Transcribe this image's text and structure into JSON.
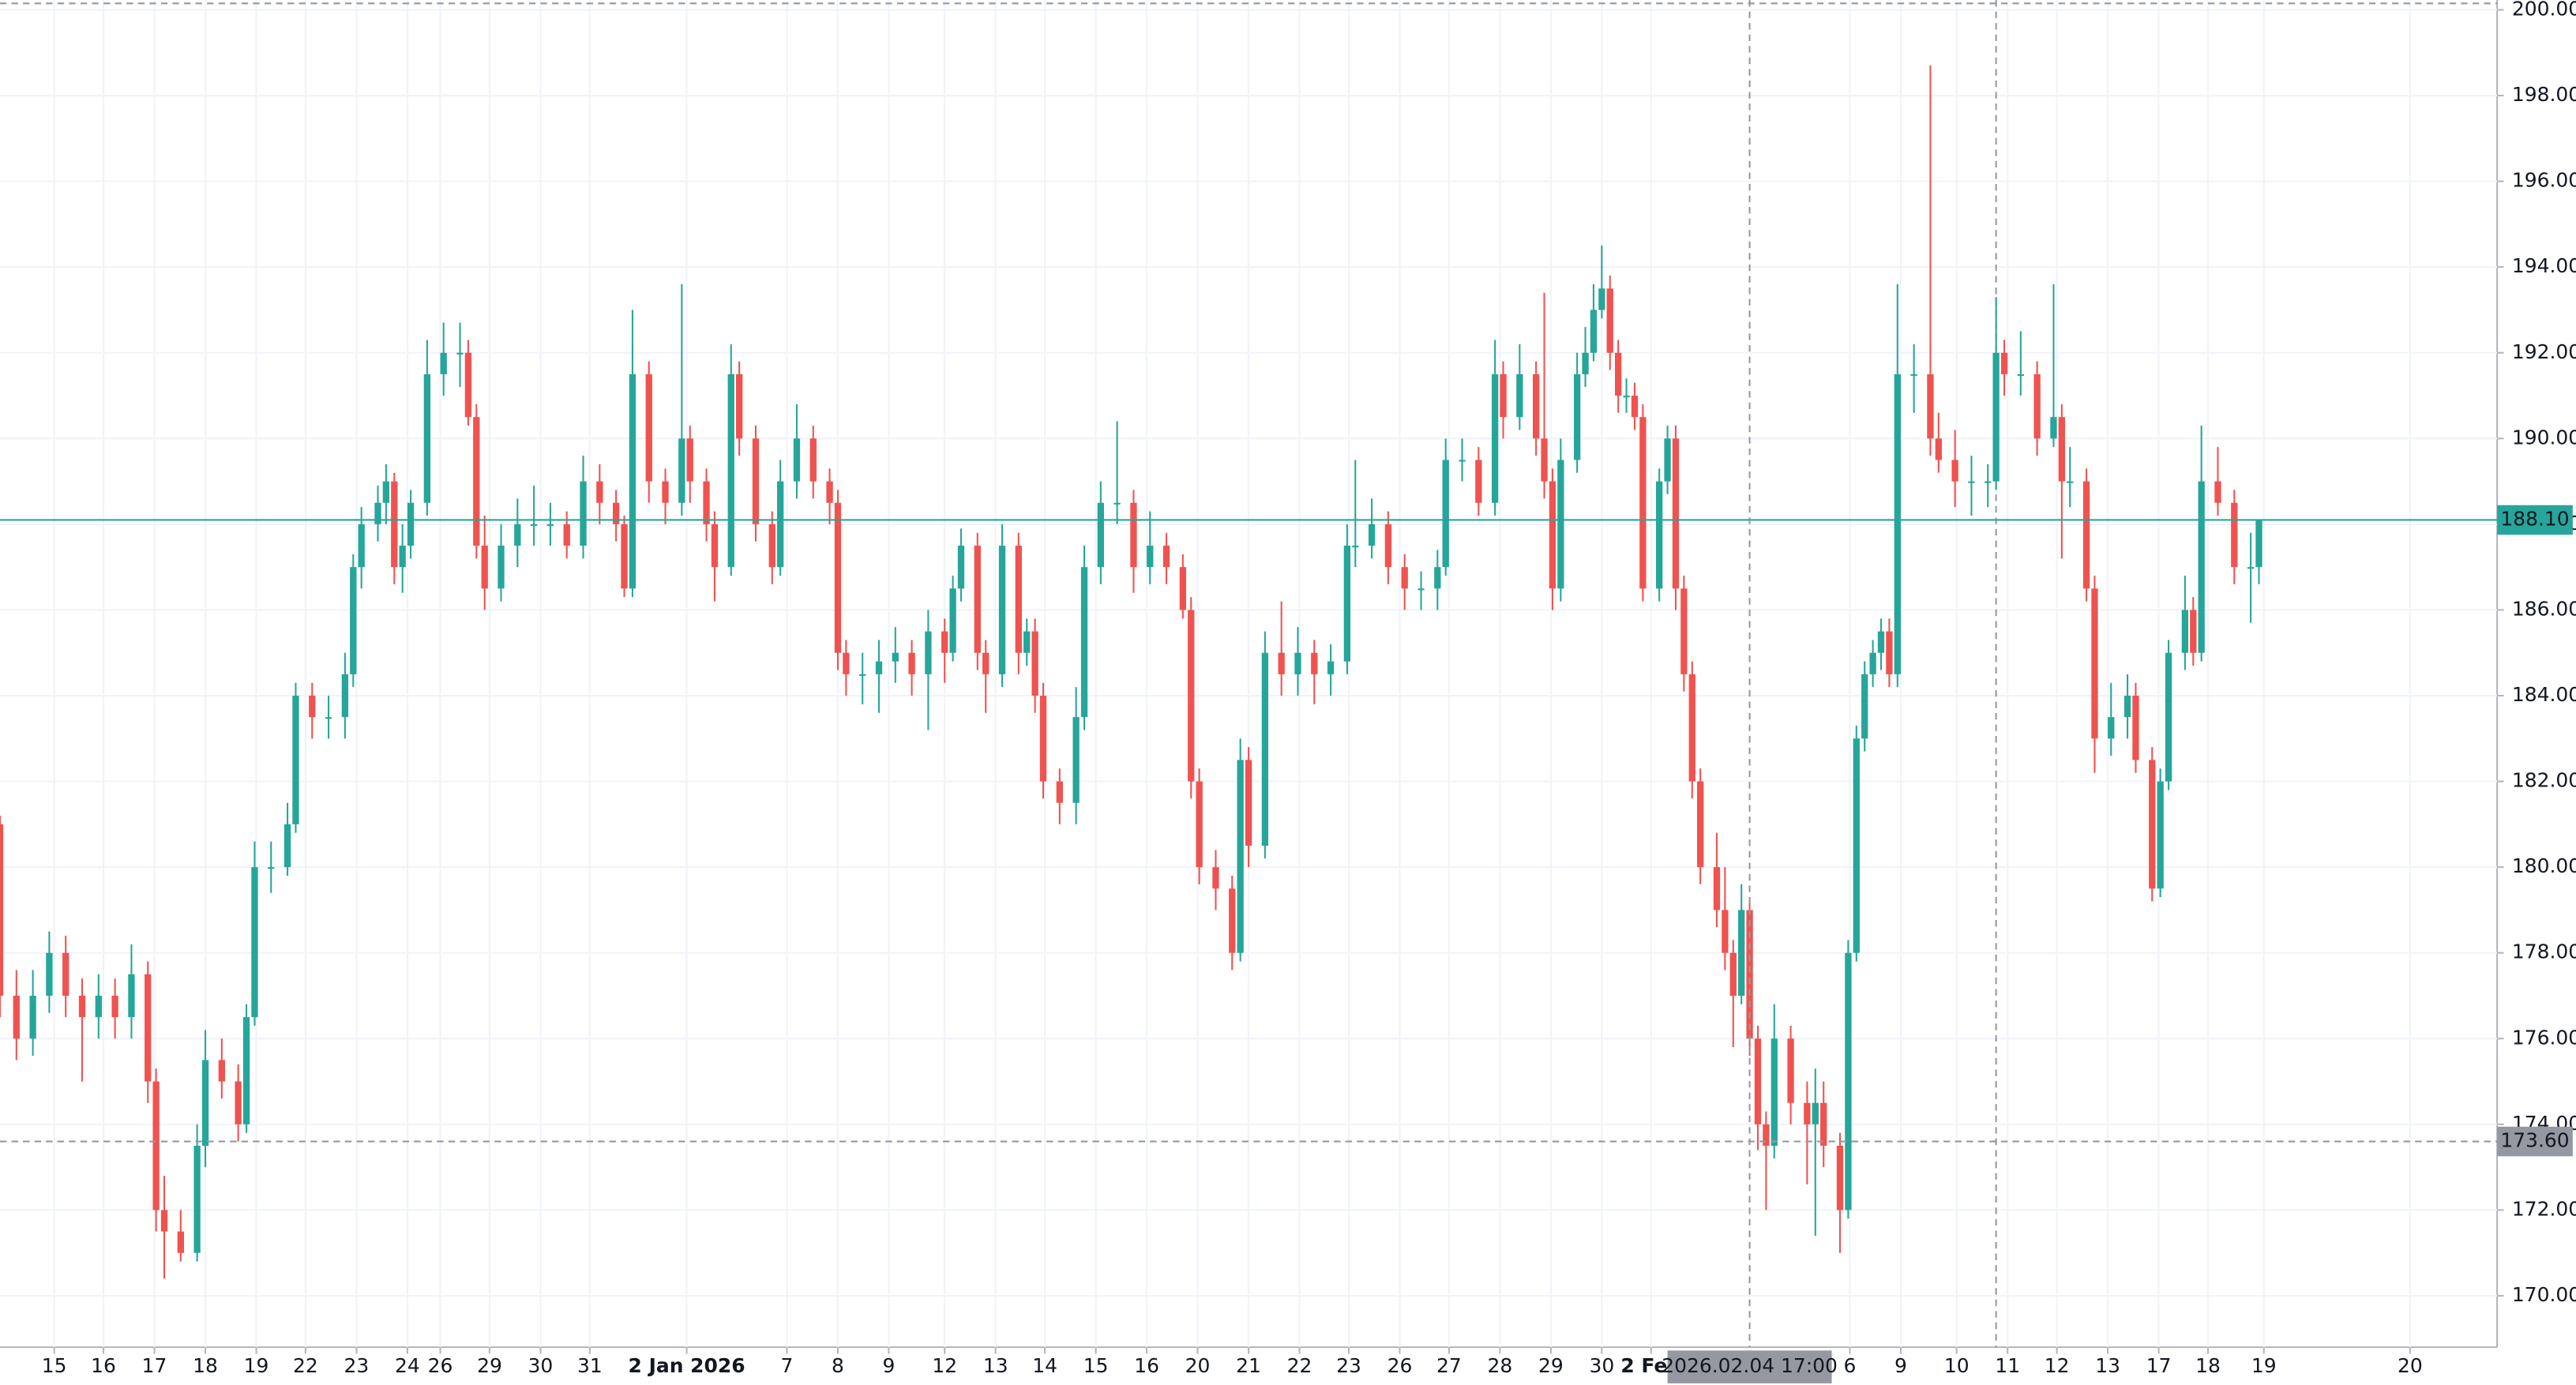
{
  "chart_data": {
    "type": "candlestick",
    "up_color": "#26a69a",
    "down_color": "#ef5350",
    "grid": true,
    "xlim": [
      0,
      304
    ],
    "ylim": [
      168.8,
      200.23
    ],
    "yticks": [
      {
        "value": 170,
        "label": "170.00"
      },
      {
        "value": 172,
        "label": "172.00"
      },
      {
        "value": 174,
        "label": "174.00"
      },
      {
        "value": 176,
        "label": "176.00"
      },
      {
        "value": 178,
        "label": "178.00"
      },
      {
        "value": 180,
        "label": "180.00"
      },
      {
        "value": 182,
        "label": "182.00"
      },
      {
        "value": 184,
        "label": "184.00"
      },
      {
        "value": 186,
        "label": "186.00"
      },
      {
        "value": 188,
        "label": "188.00"
      },
      {
        "value": 190,
        "label": "190.00"
      },
      {
        "value": 192,
        "label": "192.00"
      },
      {
        "value": 194,
        "label": "194.00"
      },
      {
        "value": 196,
        "label": "196.00"
      },
      {
        "value": 198,
        "label": "198.00"
      },
      {
        "value": 200,
        "label": "200.00"
      }
    ],
    "xticks": [
      {
        "value": 6.6,
        "label": "15"
      },
      {
        "value": 12.6,
        "label": "16"
      },
      {
        "value": 18.8,
        "label": "17"
      },
      {
        "value": 25,
        "label": "18"
      },
      {
        "value": 31.2,
        "label": "19"
      },
      {
        "value": 37.2,
        "label": "22"
      },
      {
        "value": 43.4,
        "label": "23"
      },
      {
        "value": 49.6,
        "label": "24"
      },
      {
        "value": 53.6,
        "label": "26"
      },
      {
        "value": 59.6,
        "label": "29"
      },
      {
        "value": 65.8,
        "label": "30"
      },
      {
        "value": 71.8,
        "label": "31"
      },
      {
        "value": 83.6,
        "label": "2 Jan 2026"
      },
      {
        "value": 95.8,
        "label": "7"
      },
      {
        "value": 102,
        "label": "8"
      },
      {
        "value": 108.2,
        "label": "9"
      },
      {
        "value": 115,
        "label": "12"
      },
      {
        "value": 121.2,
        "label": "13"
      },
      {
        "value": 127.2,
        "label": "14"
      },
      {
        "value": 133.4,
        "label": "15"
      },
      {
        "value": 139.6,
        "label": "16"
      },
      {
        "value": 145.8,
        "label": "20"
      },
      {
        "value": 152,
        "label": "21"
      },
      {
        "value": 158.2,
        "label": "22"
      },
      {
        "value": 164.2,
        "label": "23"
      },
      {
        "value": 170.4,
        "label": "26"
      },
      {
        "value": 176.4,
        "label": "27"
      },
      {
        "value": 182.6,
        "label": "28"
      },
      {
        "value": 188.8,
        "label": "29"
      },
      {
        "value": 195,
        "label": "30"
      },
      {
        "value": 201,
        "label": "2 Feb"
      },
      {
        "value": 225.2,
        "label": "6"
      },
      {
        "value": 231.4,
        "label": "9"
      },
      {
        "value": 238.2,
        "label": "10"
      },
      {
        "value": 244.4,
        "label": "11"
      },
      {
        "value": 250.4,
        "label": "12"
      },
      {
        "value": 256.6,
        "label": "13"
      },
      {
        "value": 262.8,
        "label": "17"
      },
      {
        "value": 268.8,
        "label": "18"
      },
      {
        "value": 275.6,
        "label": "19"
      },
      {
        "value": 293.4,
        "label": "20"
      }
    ],
    "bold_xticks": [
      "2 Jan 2026",
      "2 Feb"
    ],
    "x": [
      0,
      2,
      4,
      6,
      8,
      10,
      12,
      14,
      16,
      18,
      19,
      20,
      22,
      24,
      25,
      27,
      29,
      30,
      31,
      33,
      35,
      36,
      38,
      40,
      42,
      43,
      44,
      46,
      47,
      48,
      49,
      50,
      52,
      54,
      56,
      57,
      58,
      59,
      61,
      63,
      65,
      67,
      69,
      71,
      73,
      75,
      76,
      77,
      79,
      81,
      83,
      84,
      86,
      87,
      89,
      90,
      92,
      94,
      95,
      97,
      99,
      101,
      102,
      103,
      105,
      107,
      109,
      111,
      113,
      115,
      116,
      117,
      119,
      120,
      122,
      124,
      125,
      126,
      127,
      129,
      131,
      132,
      134,
      136,
      138,
      140,
      142,
      144,
      145,
      146,
      148,
      150,
      151,
      152,
      154,
      156,
      158,
      160,
      162,
      164,
      165,
      167,
      169,
      171,
      173,
      175,
      176,
      178,
      180,
      182,
      183,
      185,
      187,
      188,
      189,
      190,
      192,
      193,
      194,
      195,
      196,
      197,
      198,
      199,
      200,
      202,
      203,
      204,
      205,
      206,
      207,
      209,
      210,
      211,
      212,
      213,
      214,
      215,
      216,
      218,
      220,
      221,
      222,
      224,
      225,
      226,
      227,
      228,
      229,
      230,
      231,
      233,
      235,
      236,
      238,
      240,
      242,
      243,
      244,
      246,
      248,
      250,
      251,
      252,
      254,
      255,
      257,
      259,
      260,
      262,
      263,
      264,
      266,
      267,
      268,
      270,
      272,
      274,
      275
    ],
    "ohlc": [
      [
        181,
        181.2,
        176.5,
        177
      ],
      [
        177,
        177.6,
        175.5,
        176
      ],
      [
        176,
        177.6,
        175.6,
        177
      ],
      [
        177,
        178.5,
        176.6,
        178
      ],
      [
        178,
        178.4,
        176.5,
        177
      ],
      [
        177,
        177.4,
        175,
        176.5
      ],
      [
        176.5,
        177.5,
        176,
        177
      ],
      [
        177,
        177.4,
        176,
        176.5
      ],
      [
        176.5,
        178.2,
        176,
        177.5
      ],
      [
        177.5,
        177.8,
        174.5,
        175
      ],
      [
        175,
        175.3,
        171.5,
        172
      ],
      [
        172,
        172.8,
        170.4,
        171.5
      ],
      [
        171.5,
        172,
        170.8,
        171
      ],
      [
        171,
        174,
        170.8,
        173.5
      ],
      [
        173.5,
        176.2,
        173,
        175.5
      ],
      [
        175.5,
        176,
        174.6,
        175
      ],
      [
        175,
        175.4,
        173.6,
        174
      ],
      [
        174,
        176.8,
        173.8,
        176.5
      ],
      [
        176.5,
        180.6,
        176.3,
        180
      ],
      [
        180,
        180.6,
        179.4,
        180
      ],
      [
        180,
        181.5,
        179.8,
        181
      ],
      [
        181,
        184.3,
        180.8,
        184
      ],
      [
        184,
        184.3,
        183,
        183.5
      ],
      [
        183.5,
        184,
        183,
        183.5
      ],
      [
        183.5,
        185,
        183,
        184.5
      ],
      [
        184.5,
        187.3,
        184.2,
        187
      ],
      [
        187,
        188.4,
        186.5,
        188
      ],
      [
        188,
        188.9,
        187.6,
        188.5
      ],
      [
        188.5,
        189.4,
        188,
        189
      ],
      [
        189,
        189.2,
        186.6,
        187
      ],
      [
        187,
        188,
        186.4,
        187.5
      ],
      [
        187.5,
        188.8,
        187.2,
        188.5
      ],
      [
        188.5,
        192.3,
        188.2,
        191.5
      ],
      [
        191.5,
        192.7,
        191,
        192
      ],
      [
        192,
        192.7,
        191.2,
        192
      ],
      [
        192,
        192.3,
        190.3,
        190.5
      ],
      [
        190.5,
        190.8,
        187.2,
        187.5
      ],
      [
        187.5,
        188.2,
        186,
        186.5
      ],
      [
        186.5,
        188,
        186.2,
        187.5
      ],
      [
        187.5,
        188.6,
        187,
        188
      ],
      [
        188,
        188.9,
        187.5,
        188
      ],
      [
        188,
        188.5,
        187.5,
        188
      ],
      [
        188,
        188.3,
        187.2,
        187.5
      ],
      [
        187.5,
        189.6,
        187.2,
        189
      ],
      [
        189,
        189.4,
        188,
        188.5
      ],
      [
        188.5,
        188.8,
        187.6,
        188
      ],
      [
        188,
        188.2,
        186.3,
        186.5
      ],
      [
        186.5,
        193,
        186.3,
        191.5
      ],
      [
        191.5,
        191.8,
        188.5,
        189
      ],
      [
        189,
        189.3,
        188,
        188.5
      ],
      [
        188.5,
        193.6,
        188.2,
        190
      ],
      [
        190,
        190.3,
        188.5,
        189
      ],
      [
        189,
        189.3,
        187.6,
        188
      ],
      [
        188,
        188.3,
        186.2,
        187
      ],
      [
        187,
        192.2,
        186.8,
        191.5
      ],
      [
        191.5,
        191.8,
        189.6,
        190
      ],
      [
        190,
        190.3,
        187.6,
        188
      ],
      [
        188,
        188.3,
        186.6,
        187
      ],
      [
        187,
        189.5,
        186.8,
        189
      ],
      [
        189,
        190.8,
        188.6,
        190
      ],
      [
        190,
        190.3,
        188.6,
        189
      ],
      [
        189,
        189.3,
        188,
        188.5
      ],
      [
        188.5,
        188.8,
        184.6,
        185
      ],
      [
        185,
        185.3,
        184,
        184.5
      ],
      [
        184.5,
        185,
        183.8,
        184.5
      ],
      [
        184.5,
        185.3,
        183.6,
        184.8
      ],
      [
        184.8,
        185.6,
        184.3,
        185
      ],
      [
        185,
        185.3,
        184,
        184.5
      ],
      [
        184.5,
        186,
        183.2,
        185.5
      ],
      [
        185.5,
        185.8,
        184.3,
        185
      ],
      [
        185,
        186.8,
        184.8,
        186.5
      ],
      [
        186.5,
        187.9,
        186.2,
        187.5
      ],
      [
        187.5,
        187.8,
        184.6,
        185
      ],
      [
        185,
        185.3,
        183.6,
        184.5
      ],
      [
        184.5,
        188,
        184.2,
        187.5
      ],
      [
        187.5,
        187.8,
        184.5,
        185
      ],
      [
        185,
        185.8,
        184.7,
        185.5
      ],
      [
        185.5,
        185.8,
        183.6,
        184
      ],
      [
        184,
        184.3,
        181.6,
        182
      ],
      [
        182,
        182.3,
        181,
        181.5
      ],
      [
        181.5,
        184.2,
        181,
        183.5
      ],
      [
        183.5,
        187.5,
        183.2,
        187
      ],
      [
        187,
        189,
        186.6,
        188.5
      ],
      [
        188.5,
        190.4,
        188,
        188.5
      ],
      [
        188.5,
        188.8,
        186.4,
        187
      ],
      [
        187,
        188.3,
        186.6,
        187.5
      ],
      [
        187.5,
        187.8,
        186.6,
        187
      ],
      [
        187,
        187.3,
        185.8,
        186
      ],
      [
        186,
        186.3,
        181.6,
        182
      ],
      [
        182,
        182.3,
        179.6,
        180
      ],
      [
        180,
        180.4,
        179,
        179.5
      ],
      [
        179.5,
        179.8,
        177.6,
        178
      ],
      [
        178,
        183,
        177.8,
        182.5
      ],
      [
        182.5,
        182.8,
        180,
        180.5
      ],
      [
        180.5,
        185.5,
        180.2,
        185
      ],
      [
        185,
        186.2,
        184,
        184.5
      ],
      [
        184.5,
        185.6,
        184,
        185
      ],
      [
        185,
        185.3,
        183.8,
        184.5
      ],
      [
        184.5,
        185.2,
        184,
        184.8
      ],
      [
        184.8,
        188,
        184.5,
        187.5
      ],
      [
        187.5,
        189.5,
        187,
        187.5
      ],
      [
        187.5,
        188.6,
        187.2,
        188
      ],
      [
        188,
        188.3,
        186.6,
        187
      ],
      [
        187,
        187.3,
        186,
        186.5
      ],
      [
        186.5,
        186.9,
        186,
        186.5
      ],
      [
        186.5,
        187.4,
        186,
        187
      ],
      [
        187,
        190,
        186.8,
        189.5
      ],
      [
        189.5,
        190,
        189,
        189.5
      ],
      [
        189.5,
        189.8,
        188.2,
        188.5
      ],
      [
        188.5,
        192.3,
        188.2,
        191.5
      ],
      [
        191.5,
        191.8,
        190,
        190.5
      ],
      [
        190.5,
        192.2,
        190.2,
        191.5
      ],
      [
        191.5,
        191.8,
        189.6,
        190
      ],
      [
        190,
        193.4,
        188.6,
        189
      ],
      [
        189,
        189.3,
        186,
        186.5
      ],
      [
        186.5,
        190,
        186.2,
        189.5
      ],
      [
        189.5,
        192,
        189.2,
        191.5
      ],
      [
        191.5,
        192.6,
        191.2,
        192
      ],
      [
        192,
        193.6,
        191.8,
        193
      ],
      [
        193,
        194.5,
        192.8,
        193.5
      ],
      [
        193.5,
        193.8,
        191.6,
        192
      ],
      [
        192,
        192.3,
        190.6,
        191
      ],
      [
        191,
        191.4,
        190.6,
        191
      ],
      [
        191,
        191.3,
        190.2,
        190.5
      ],
      [
        190.5,
        190.8,
        186.2,
        186.5
      ],
      [
        186.5,
        189.3,
        186.2,
        189
      ],
      [
        189,
        190.3,
        188.7,
        190
      ],
      [
        190,
        190.3,
        186,
        186.5
      ],
      [
        186.5,
        186.8,
        184.1,
        184.5
      ],
      [
        184.5,
        184.8,
        181.6,
        182
      ],
      [
        182,
        182.3,
        179.6,
        180
      ],
      [
        180,
        180.8,
        178.6,
        179
      ],
      [
        179,
        180,
        177.6,
        178
      ],
      [
        178,
        178.3,
        175.8,
        177
      ],
      [
        177,
        179.6,
        176.8,
        179
      ],
      [
        179,
        179.3,
        175.6,
        176
      ],
      [
        176,
        176.3,
        173.4,
        174
      ],
      [
        174,
        174.3,
        172,
        173.5
      ],
      [
        173.5,
        176.8,
        173.2,
        176
      ],
      [
        176,
        176.3,
        174,
        174.5
      ],
      [
        174.5,
        175,
        172.6,
        174
      ],
      [
        174,
        175.3,
        171.4,
        174.5
      ],
      [
        174.5,
        175,
        173,
        173.5
      ],
      [
        173.5,
        173.8,
        171,
        172
      ],
      [
        172,
        178.3,
        171.8,
        178
      ],
      [
        178,
        183.3,
        177.8,
        183
      ],
      [
        183,
        184.8,
        182.7,
        184.5
      ],
      [
        184.5,
        185.3,
        184.2,
        185
      ],
      [
        185,
        185.8,
        184.6,
        185.5
      ],
      [
        185.5,
        185.8,
        184.2,
        184.5
      ],
      [
        184.5,
        193.6,
        184.2,
        191.5
      ],
      [
        191.5,
        192.2,
        190.6,
        191.5
      ],
      [
        191.5,
        198.7,
        189.6,
        190
      ],
      [
        190,
        190.6,
        189.2,
        189.5
      ],
      [
        189.5,
        190.2,
        188.4,
        189
      ],
      [
        189,
        189.6,
        188.2,
        189
      ],
      [
        189,
        189.4,
        188.4,
        189
      ],
      [
        189,
        193.3,
        188.8,
        192
      ],
      [
        192,
        192.3,
        191,
        191.5
      ],
      [
        191.5,
        192.5,
        191,
        191.5
      ],
      [
        191.5,
        191.8,
        189.6,
        190
      ],
      [
        190,
        193.6,
        189.8,
        190.5
      ],
      [
        190.5,
        190.8,
        187.2,
        189
      ],
      [
        189,
        189.8,
        188.4,
        189
      ],
      [
        189,
        189.3,
        186.2,
        186.5
      ],
      [
        186.5,
        186.8,
        182.2,
        183
      ],
      [
        183,
        184.3,
        182.6,
        183.5
      ],
      [
        183.5,
        184.5,
        183,
        184
      ],
      [
        184,
        184.3,
        182.2,
        182.5
      ],
      [
        182.5,
        182.8,
        179.2,
        179.5
      ],
      [
        179.5,
        182.3,
        179.3,
        182
      ],
      [
        182,
        185.3,
        181.8,
        185
      ],
      [
        185,
        186.8,
        184.6,
        186
      ],
      [
        186,
        186.3,
        184.7,
        185
      ],
      [
        185,
        190.3,
        184.8,
        189
      ],
      [
        189,
        189.8,
        188.2,
        188.5
      ],
      [
        188.5,
        188.8,
        186.6,
        187
      ],
      [
        187,
        187.8,
        185.7,
        187
      ],
      [
        187,
        188.1,
        186.6,
        188.1
      ]
    ],
    "last_price": {
      "value": 188.1,
      "label": "188.10"
    },
    "crosshair": {
      "x": 213,
      "x_label": "2026.02.04 17:00",
      "y": 173.6,
      "y_label": "173.60"
    },
    "vlines": [
      243
    ],
    "hlines": [
      200.15
    ]
  }
}
